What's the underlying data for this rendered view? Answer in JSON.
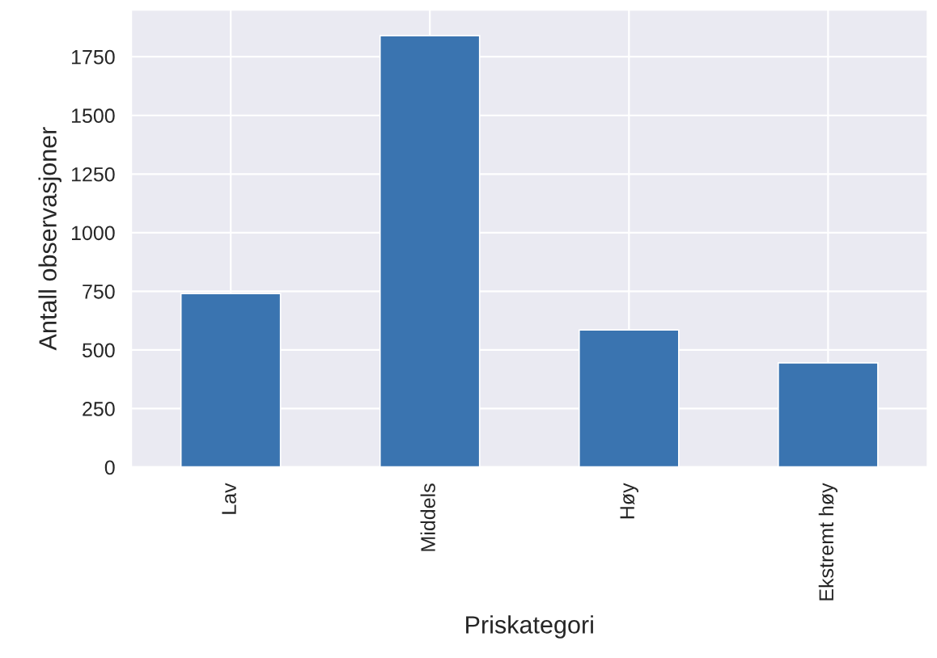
{
  "chart_data": {
    "type": "bar",
    "xlabel": "Priskategori",
    "ylabel": "Antall observasjoner",
    "categories": [
      "Lav",
      "Middels",
      "Høy",
      "Ekstremt høy"
    ],
    "values": [
      740,
      1840,
      585,
      445
    ],
    "color": "#3a74b0",
    "ylim": [
      0,
      1950
    ],
    "yticks": [
      0,
      250,
      500,
      750,
      1000,
      1250,
      1500,
      1750
    ],
    "grid": true,
    "legend": false
  }
}
